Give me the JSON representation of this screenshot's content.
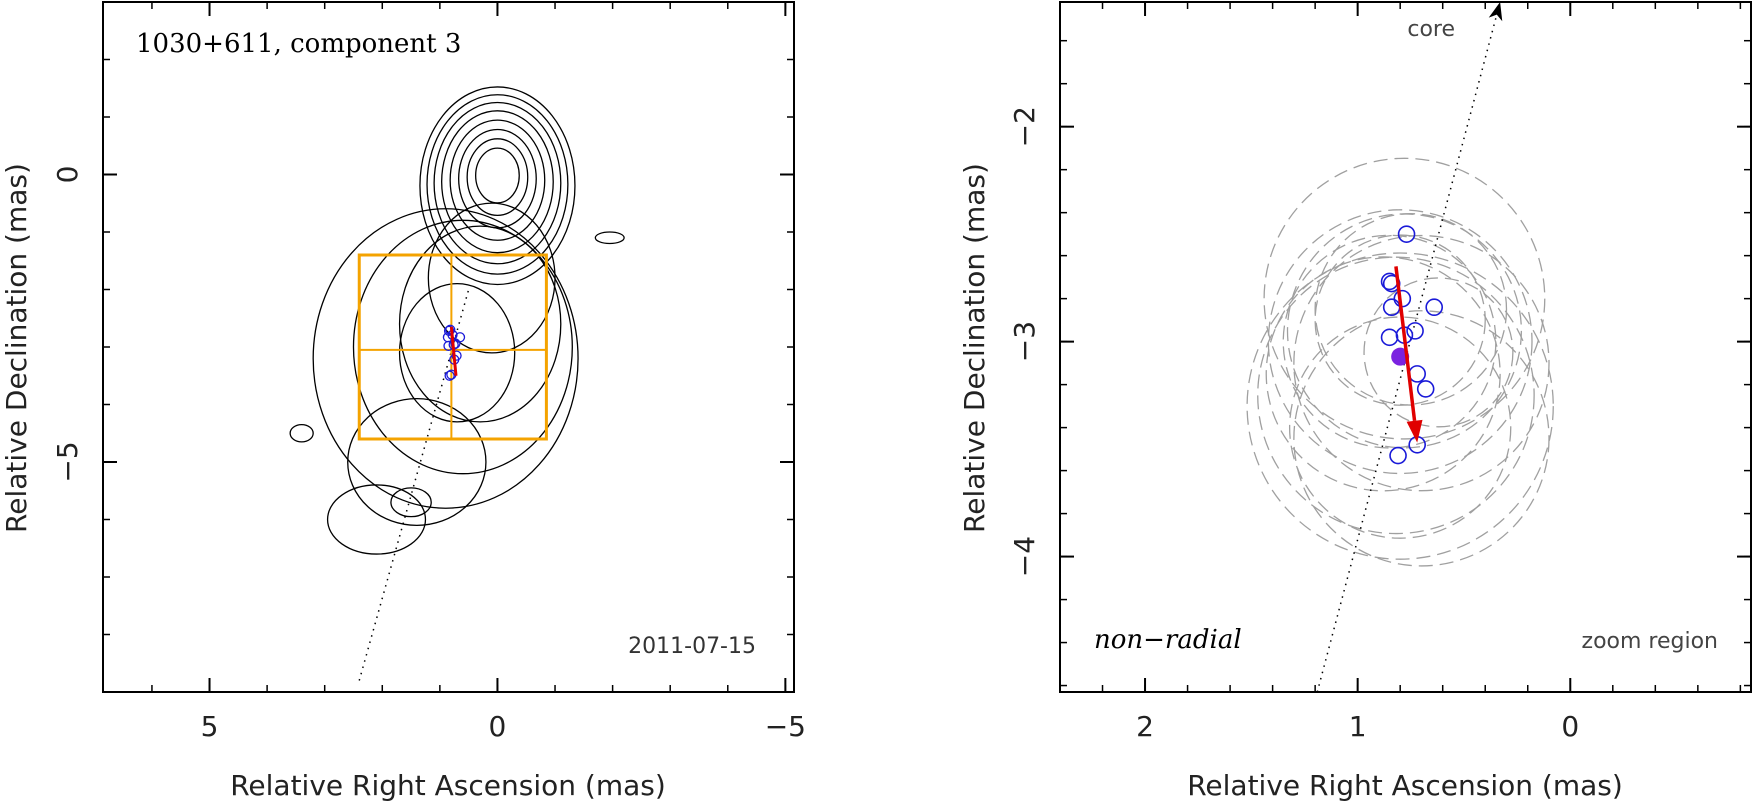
{
  "colors": {
    "box": "#f4a300",
    "motion_arrow": "#e00000",
    "positions": "#1a1ad8",
    "mean_position": "#7b22e0",
    "ellipses": "#a0a0a0",
    "contours": "#000000"
  },
  "chart_data": [
    {
      "type": "scatter",
      "title": "1030+611, component 3",
      "epoch": "2011-07-15",
      "xlabel": "Relative Right Ascension (mas)",
      "ylabel": "Relative Declination (mas)",
      "xlim": [
        6.85,
        -5.15
      ],
      "ylim": [
        -9.0,
        3.0
      ],
      "x_ticks": [
        {
          "v": 5,
          "label": "5"
        },
        {
          "v": 0,
          "label": "0"
        },
        {
          "v": -5,
          "label": "−5"
        }
      ],
      "y_ticks": [
        {
          "v": 0,
          "label": "0"
        },
        {
          "v": -5,
          "label": "−5"
        }
      ],
      "zoom_box": {
        "x": [
          2.4,
          -0.85
        ],
        "y": [
          -1.4,
          -4.6
        ],
        "cross": [
          0.8,
          -3.05
        ]
      },
      "jet_axis": [
        [
          2.4,
          -8.8
        ],
        [
          0.5,
          -2.0
        ]
      ],
      "motion_vector": {
        "from": [
          0.8,
          -2.65
        ],
        "to": [
          0.72,
          -3.5
        ]
      },
      "positions": {
        "x": [
          0.82,
          0.84,
          0.86,
          0.78,
          0.65,
          0.76,
          0.85,
          0.73,
          0.71,
          0.75,
          0.83,
          0.8
        ],
        "y": [
          -2.7,
          -2.72,
          -2.83,
          -2.79,
          -2.83,
          -2.96,
          -2.98,
          -2.94,
          -3.15,
          -3.22,
          -3.5,
          -3.48
        ]
      }
    },
    {
      "type": "scatter",
      "xlabel": "Relative Right Ascension (mas)",
      "ylabel": "Relative Declination (mas)",
      "xlim": [
        2.4,
        -0.85
      ],
      "ylim": [
        -4.63,
        -1.42
      ],
      "x_ticks": [
        {
          "v": 2,
          "label": "2"
        },
        {
          "v": 1,
          "label": "1"
        },
        {
          "v": 0,
          "label": "0"
        }
      ],
      "y_ticks": [
        {
          "v": -2,
          "label": "−2"
        },
        {
          "v": -3,
          "label": "−3"
        },
        {
          "v": -4,
          "label": "−4"
        }
      ],
      "core_label": "core",
      "mode_label": "non−radial",
      "region_label": "zoom region",
      "jet_axis": [
        [
          1.19,
          -4.63
        ],
        [
          0.33,
          -1.42
        ]
      ],
      "motion_vector": {
        "from": [
          0.82,
          -2.65
        ],
        "to": [
          0.72,
          -3.47
        ]
      },
      "mean_position": {
        "x": 0.8,
        "y": -3.07
      },
      "positions": {
        "x": [
          0.77,
          0.85,
          0.84,
          0.84,
          0.79,
          0.64,
          0.85,
          0.78,
          0.73,
          0.72,
          0.68,
          0.72,
          0.81
        ],
        "y": [
          -2.5,
          -2.72,
          -2.73,
          -2.84,
          -2.8,
          -2.84,
          -2.98,
          -2.97,
          -2.95,
          -3.15,
          -3.22,
          -3.48,
          -3.53
        ]
      },
      "ellipses": [
        {
          "x": 0.8,
          "y": -3.0,
          "r": 0.62
        },
        {
          "x": 0.78,
          "y": -2.95,
          "r": 0.55
        },
        {
          "x": 0.85,
          "y": -3.0,
          "r": 0.5
        },
        {
          "x": 0.75,
          "y": -2.85,
          "r": 0.45
        },
        {
          "x": 0.7,
          "y": -3.1,
          "r": 0.6
        },
        {
          "x": 0.8,
          "y": -2.9,
          "r": 0.4
        },
        {
          "x": 0.82,
          "y": -3.25,
          "r": 0.65
        },
        {
          "x": 0.88,
          "y": -3.15,
          "r": 0.55
        },
        {
          "x": 0.62,
          "y": -3.05,
          "r": 0.35
        },
        {
          "x": 0.8,
          "y": -3.3,
          "r": 0.72
        },
        {
          "x": 0.7,
          "y": -3.45,
          "r": 0.6
        },
        {
          "x": 0.8,
          "y": -3.4,
          "r": 0.52
        },
        {
          "x": 0.78,
          "y": -2.8,
          "r": 0.66
        }
      ]
    }
  ]
}
